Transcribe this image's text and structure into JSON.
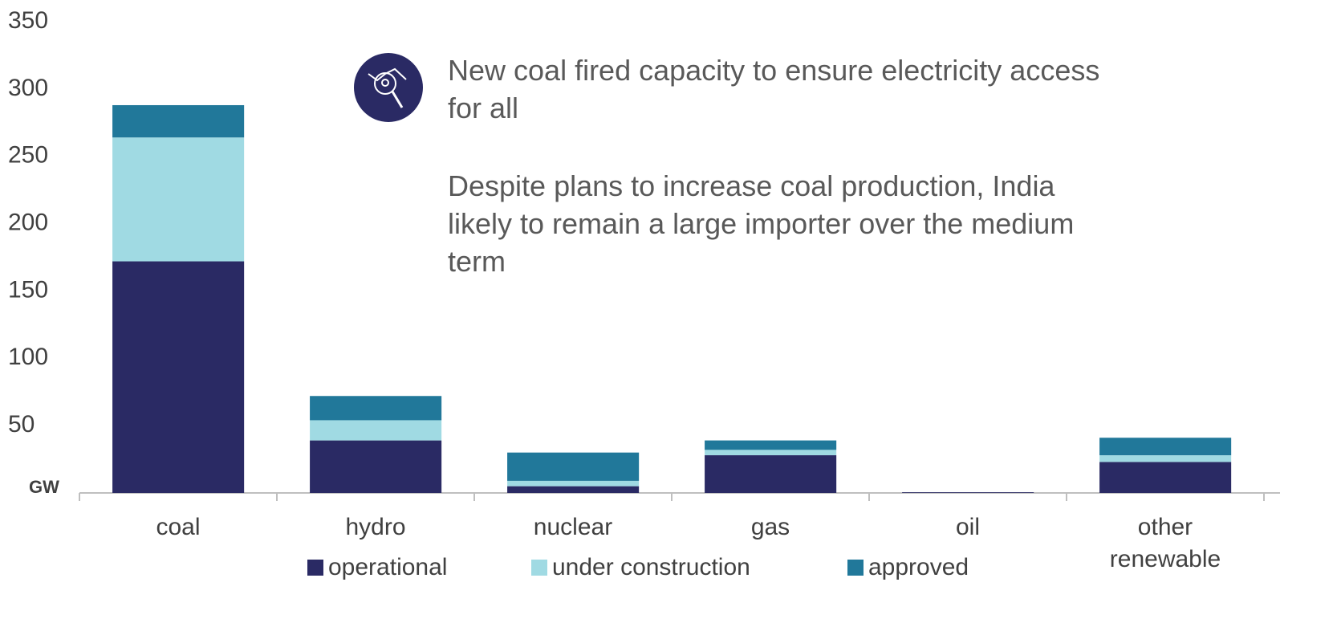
{
  "chart_data": {
    "type": "bar",
    "stacked": true,
    "annotations": [
      "New coal fired capacity to ensure electricity access for all",
      "Despite plans to increase coal production, India likely to remain a large importer over the medium term"
    ],
    "categories": [
      "coal",
      "hydro",
      "nuclear",
      "gas",
      "oil",
      "other renewable"
    ],
    "series": [
      {
        "name": "operational",
        "color": "#2a2a64",
        "values": [
          172,
          39,
          5,
          28,
          0.5,
          23
        ]
      },
      {
        "name": "under construction",
        "color": "#a0dae3",
        "values": [
          92,
          15,
          4,
          4,
          0,
          5
        ]
      },
      {
        "name": "approved",
        "color": "#21789a",
        "values": [
          24,
          18,
          21,
          7,
          0,
          13
        ]
      }
    ],
    "ylim": [
      0,
      350
    ],
    "yticks": [
      {
        "value": 0,
        "label": "GW"
      },
      50,
      100,
      150,
      200,
      250,
      300,
      350
    ],
    "grid": false
  }
}
